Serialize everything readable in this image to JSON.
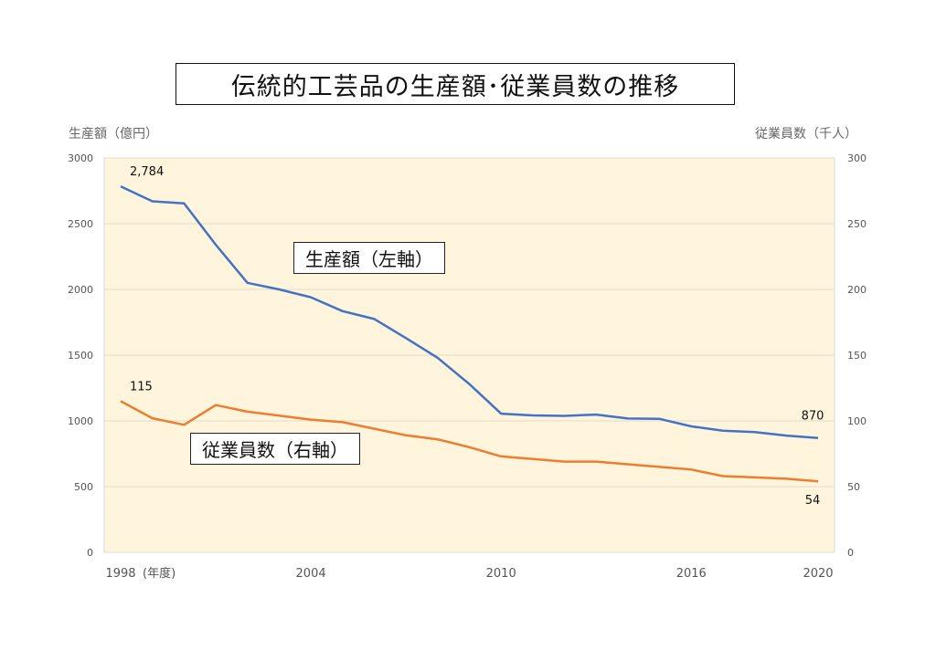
{
  "chart_data": {
    "type": "line",
    "title": "伝統的工芸品の生産額･従業員数の推移",
    "left_axis_title": "生産額（億円）",
    "right_axis_title": "従業員数（千人）",
    "x_unit_label": "(年度)",
    "x": [
      1998,
      1999,
      2000,
      2001,
      2002,
      2003,
      2004,
      2005,
      2006,
      2007,
      2008,
      2009,
      2010,
      2011,
      2012,
      2013,
      2014,
      2015,
      2016,
      2017,
      2018,
      2019,
      2020
    ],
    "x_tick_labels": [
      "1998",
      "2004",
      "2010",
      "2016",
      "2020"
    ],
    "y_left": {
      "range": [
        0,
        3000
      ],
      "ticks": [
        0,
        500,
        1000,
        1500,
        2000,
        2500,
        3000
      ]
    },
    "y_right": {
      "range": [
        0,
        300
      ],
      "ticks": [
        0,
        50,
        100,
        150,
        200,
        250,
        300
      ]
    },
    "grid": true,
    "plot_background": "#fff5dc",
    "series": [
      {
        "name": "生産額（左軸）",
        "axis": "left",
        "color": "#4472c4",
        "values": [
          2784,
          2670,
          2655,
          2340,
          2050,
          2000,
          1940,
          1835,
          1775,
          1630,
          1480,
          1280,
          1055,
          1042,
          1038,
          1048,
          1018,
          1015,
          958,
          925,
          915,
          888,
          870
        ]
      },
      {
        "name": "従業員数（右軸）",
        "axis": "right",
        "color": "#ed7d31",
        "values": [
          115,
          102,
          97,
          112,
          107,
          104,
          101,
          99,
          94,
          89,
          86,
          80,
          73,
          71,
          69,
          69,
          67,
          65,
          63,
          58,
          57,
          56,
          54
        ]
      }
    ],
    "data_labels": [
      {
        "series": 0,
        "index": 0,
        "text": "2,784"
      },
      {
        "series": 0,
        "index": 22,
        "text": "870"
      },
      {
        "series": 1,
        "index": 0,
        "text": "115"
      },
      {
        "series": 1,
        "index": 22,
        "text": "54"
      }
    ]
  }
}
